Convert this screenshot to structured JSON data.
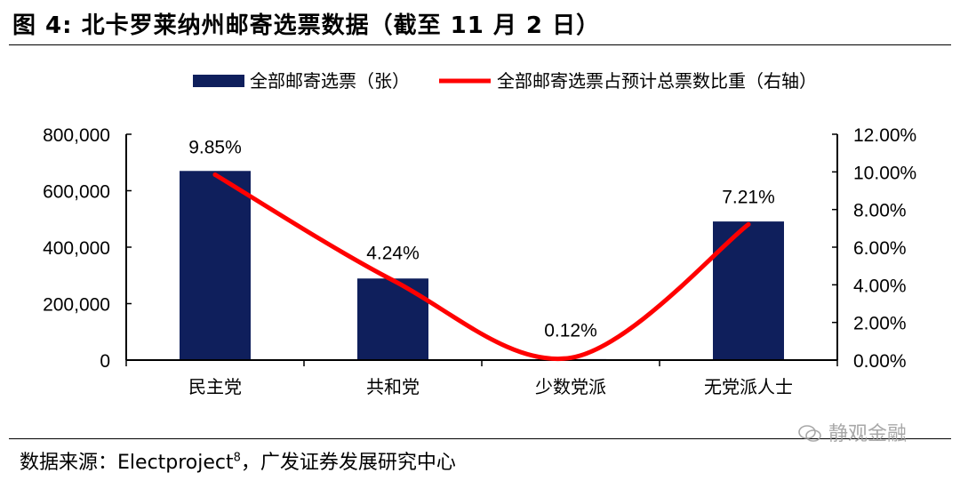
{
  "header": {
    "title": "图 4:  北卡罗莱纳州邮寄选票数据（截至 11 月 2 日）"
  },
  "footer": {
    "source_prefix": "数据来源：",
    "source_main": "Electproject",
    "source_sup": "8",
    "source_suffix": "，广发证券发展研究中心"
  },
  "watermark": {
    "text": "静观金融",
    "icon": "wechat-icon"
  },
  "colors": {
    "bar": "#0f1f5c",
    "line": "#ff0000",
    "axis": "#000000"
  },
  "chart_data": {
    "type": "bar",
    "categories": [
      "民主党",
      "共和党",
      "少数党派",
      "无党派人士"
    ],
    "series": [
      {
        "name": "全部邮寄选票（张）",
        "type": "bar",
        "axis": "left",
        "values": [
          670000,
          289000,
          3500,
          491000
        ]
      },
      {
        "name": "全部邮寄选票占预计总票数比重（右轴）",
        "type": "line",
        "axis": "right",
        "values": [
          9.85,
          4.24,
          0.12,
          7.21
        ],
        "labels": [
          "9.85%",
          "4.24%",
          "0.12%",
          "7.21%"
        ]
      }
    ],
    "left_axis": {
      "ylim": [
        0,
        800000
      ],
      "ticks": [
        "0",
        "200,000",
        "400,000",
        "600,000",
        "800,000"
      ],
      "tick_values": [
        0,
        200000,
        400000,
        600000,
        800000
      ]
    },
    "right_axis": {
      "ylim": [
        0,
        12
      ],
      "ticks": [
        "0.00%",
        "2.00%",
        "4.00%",
        "6.00%",
        "8.00%",
        "10.00%",
        "12.00%"
      ],
      "tick_values": [
        0,
        2,
        4,
        6,
        8,
        10,
        12
      ]
    },
    "legend_position": "top",
    "grid": false
  }
}
